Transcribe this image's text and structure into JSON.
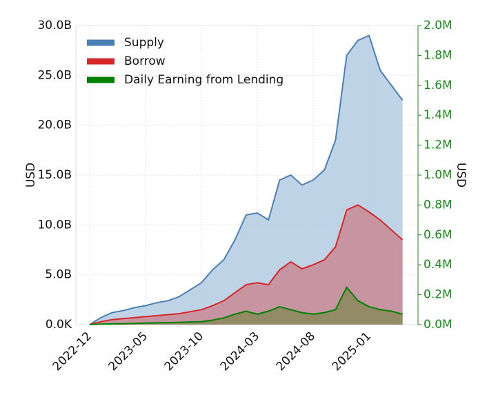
{
  "chart_data": {
    "type": "area",
    "x": [
      "2022-12",
      null,
      null,
      null,
      null,
      "2023-05",
      null,
      null,
      null,
      null,
      "2023-10",
      null,
      null,
      null,
      null,
      "2024-03",
      null,
      null,
      null,
      null,
      "2024-08",
      null,
      null,
      null,
      null,
      "2025-01",
      null,
      null,
      null
    ],
    "ylabel": "USD",
    "y2label": "USD",
    "ylim": [
      0,
      30000000000
    ],
    "yticks": [
      {
        "value": 0,
        "label": "0.0K"
      },
      {
        "value": 5000000000,
        "label": "5.0B"
      },
      {
        "value": 10000000000,
        "label": "10.0B"
      },
      {
        "value": 15000000000,
        "label": "15.0B"
      },
      {
        "value": 20000000000,
        "label": "20.0B"
      },
      {
        "value": 25000000000,
        "label": "25.0B"
      },
      {
        "value": 30000000000,
        "label": "30.0B"
      }
    ],
    "y2lim": [
      0,
      2000000
    ],
    "y2ticks": [
      {
        "value": 0,
        "label": "0.0M"
      },
      {
        "value": 200000,
        "label": "0.2M"
      },
      {
        "value": 400000,
        "label": "0.4M"
      },
      {
        "value": 600000,
        "label": "0.6M"
      },
      {
        "value": 800000,
        "label": "0.8M"
      },
      {
        "value": 1000000,
        "label": "1.0M"
      },
      {
        "value": 1200000,
        "label": "1.2M"
      },
      {
        "value": 1400000,
        "label": "1.4M"
      },
      {
        "value": 1600000,
        "label": "1.6M"
      },
      {
        "value": 1800000,
        "label": "1.8M"
      },
      {
        "value": 2000000,
        "label": "2.0M"
      }
    ],
    "y2color": "#1a8a1a",
    "grid": true,
    "legend": "upper left",
    "series": [
      {
        "name": "Supply",
        "color": "#4a7fb5",
        "fill": "#b3cbe2",
        "values": [
          0,
          700000000,
          1200000000,
          1400000000,
          1700000000,
          1900000000,
          2200000000,
          2400000000,
          2800000000,
          3500000000,
          4200000000,
          5500000000,
          6500000000,
          8500000000,
          11000000000,
          11200000000,
          10500000000,
          14500000000,
          15000000000,
          14000000000,
          14500000000,
          15500000000,
          18500000000,
          27000000000,
          28500000000,
          29000000000,
          25500000000,
          24000000000,
          22500000000
        ]
      },
      {
        "name": "Borrow",
        "color": "#d62728",
        "fill": "#c98a95",
        "values": [
          0,
          300000000,
          500000000,
          600000000,
          700000000,
          800000000,
          900000000,
          1000000000,
          1100000000,
          1300000000,
          1500000000,
          1900000000,
          2400000000,
          3200000000,
          4000000000,
          4200000000,
          4000000000,
          5500000000,
          6300000000,
          5600000000,
          6000000000,
          6500000000,
          7800000000,
          11500000000,
          12000000000,
          11300000000,
          10500000000,
          9500000000,
          8500000000
        ]
      },
      {
        "name": "Daily Earning from Lending",
        "color": "#008000",
        "fill": "#8a8a5a",
        "axis": "y2",
        "values": [
          0,
          3000,
          5000,
          6000,
          8000,
          10000,
          12000,
          13000,
          15000,
          18000,
          20000,
          30000,
          45000,
          70000,
          90000,
          70000,
          90000,
          120000,
          100000,
          80000,
          70000,
          80000,
          100000,
          250000,
          160000,
          120000,
          100000,
          90000,
          70000
        ]
      }
    ]
  }
}
